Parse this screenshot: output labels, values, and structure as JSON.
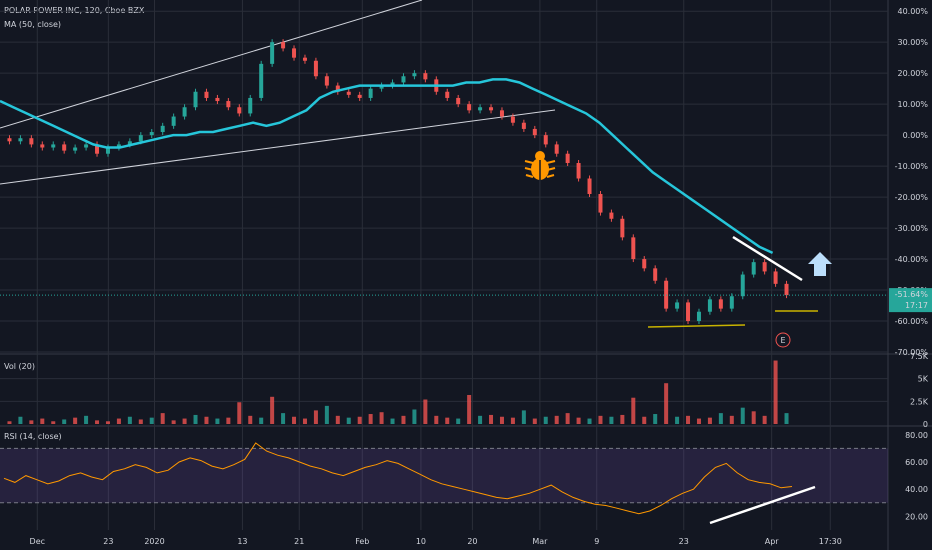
{
  "header": {
    "symbol": "POLAR POWER INC, 120, Cboe BZX",
    "ma_label": "MA (50, close)"
  },
  "colors": {
    "background": "#131722",
    "grid": "#2a2e39",
    "up": "#26a69a",
    "down": "#ef5350",
    "ma_line": "#26c6da",
    "rsi_line": "#ff9800",
    "rsi_band": "#7e57c2",
    "badge_bg": "#26a69a",
    "bug_icon": "#ff9800",
    "arrow": "#bbdefb",
    "support_line": "#c9b300"
  },
  "price_badge": {
    "value": "-51.64%",
    "time": "17:17"
  },
  "earnings_marker": "E",
  "chart_data": [
    {
      "type": "line",
      "panel": "price",
      "scale": "percent",
      "y_ticks": [
        "40.00%",
        "30.00%",
        "20.00%",
        "10.00%",
        "0.00%",
        "-10.00%",
        "-20.00%",
        "-30.00%",
        "-40.00%",
        "-50.00%",
        "-60.00%",
        "-70.00%"
      ],
      "y_tick_values": [
        40,
        30,
        20,
        10,
        0,
        -10,
        -20,
        -30,
        -40,
        -50,
        -60,
        -70
      ],
      "ylim": [
        -70,
        42
      ],
      "x_ticks": [
        "Dec",
        "23",
        "2020",
        "13",
        "21",
        "Feb",
        "10",
        "20",
        "Mar",
        "9",
        "23",
        "Apr",
        "17:30"
      ],
      "x_tick_pos": [
        0.042,
        0.122,
        0.174,
        0.273,
        0.337,
        0.408,
        0.474,
        0.532,
        0.608,
        0.672,
        0.77,
        0.869,
        0.935
      ],
      "series": [
        {
          "values": [
            -2,
            -1,
            -3,
            -4,
            -3,
            -5,
            -4,
            -3,
            -6,
            -4,
            -3,
            -2,
            0,
            1,
            3,
            6,
            9,
            14,
            12,
            11,
            9,
            7,
            12,
            23,
            30,
            28,
            25,
            24,
            19,
            16,
            14,
            13,
            12,
            15,
            16,
            17,
            19,
            20,
            18,
            14,
            12,
            10,
            8,
            9,
            8,
            6,
            4,
            2,
            0,
            -3,
            -6,
            -9,
            -14,
            -19,
            -25,
            -27,
            -33,
            -40,
            -43,
            -47,
            -56,
            -54,
            -60,
            -57,
            -53,
            -56,
            -52,
            -45,
            -41,
            -44,
            -48,
            -51.64
          ]
        },
        {
          "name": "MA (50, close)",
          "values": [
            11,
            9,
            7,
            5,
            3,
            1,
            -1,
            -3,
            -4,
            -4,
            -3,
            -2,
            -1,
            0,
            0,
            1,
            1,
            2,
            3,
            4,
            3,
            4,
            6,
            8,
            12,
            14,
            15,
            16,
            16,
            16,
            16,
            16,
            16,
            16,
            16,
            17,
            17,
            18,
            18,
            17,
            15,
            13,
            11,
            9,
            7,
            4,
            0,
            -4,
            -8,
            -12,
            -15,
            -18,
            -21,
            -24,
            -27,
            -30,
            -33,
            -36,
            -38
          ]
        }
      ],
      "annotations": [
        {
          "type": "resistance",
          "label": ""
        },
        {
          "type": "support",
          "label": ""
        }
      ]
    },
    {
      "type": "bar",
      "panel": "volume",
      "title": "Vol (20)",
      "y_ticks": [
        "7.5K",
        "5K",
        "2.5K",
        "0"
      ],
      "y_tick_values": [
        7500,
        5000,
        2500,
        0
      ],
      "ylim": [
        0,
        7500
      ],
      "values": [
        300,
        800,
        400,
        600,
        300,
        500,
        700,
        900,
        400,
        300,
        600,
        800,
        500,
        700,
        1200,
        400,
        600,
        1000,
        800,
        600,
        700,
        2400,
        900,
        700,
        3000,
        1200,
        800,
        600,
        1500,
        2000,
        900,
        700,
        800,
        1100,
        1300,
        600,
        900,
        1600,
        2700,
        900,
        700,
        600,
        3200,
        900,
        1000,
        800,
        700,
        1500,
        600,
        800,
        900,
        1200,
        700,
        600,
        900,
        800,
        1000,
        2900,
        800,
        1100,
        4500,
        800,
        900,
        600,
        700,
        1200,
        900,
        1800,
        1400,
        900,
        7000,
        1200
      ]
    },
    {
      "type": "line",
      "panel": "rsi",
      "title": "RSI (14, close)",
      "y_ticks": [
        "80.00",
        "60.00",
        "40.00",
        "20.00"
      ],
      "y_tick_values": [
        80,
        60,
        40,
        20
      ],
      "ylim": [
        10,
        85
      ],
      "band": [
        30,
        70
      ],
      "values": [
        48,
        45,
        50,
        47,
        44,
        46,
        50,
        52,
        49,
        47,
        53,
        55,
        58,
        56,
        52,
        54,
        60,
        63,
        61,
        57,
        55,
        58,
        62,
        74,
        68,
        65,
        63,
        60,
        57,
        55,
        52,
        50,
        53,
        56,
        58,
        61,
        59,
        55,
        51,
        47,
        44,
        42,
        40,
        38,
        36,
        34,
        33,
        35,
        37,
        40,
        43,
        38,
        34,
        31,
        29,
        28,
        26,
        24,
        22,
        24,
        28,
        33,
        37,
        40,
        49,
        56,
        59,
        52,
        47,
        45,
        44,
        41,
        42
      ]
    }
  ]
}
